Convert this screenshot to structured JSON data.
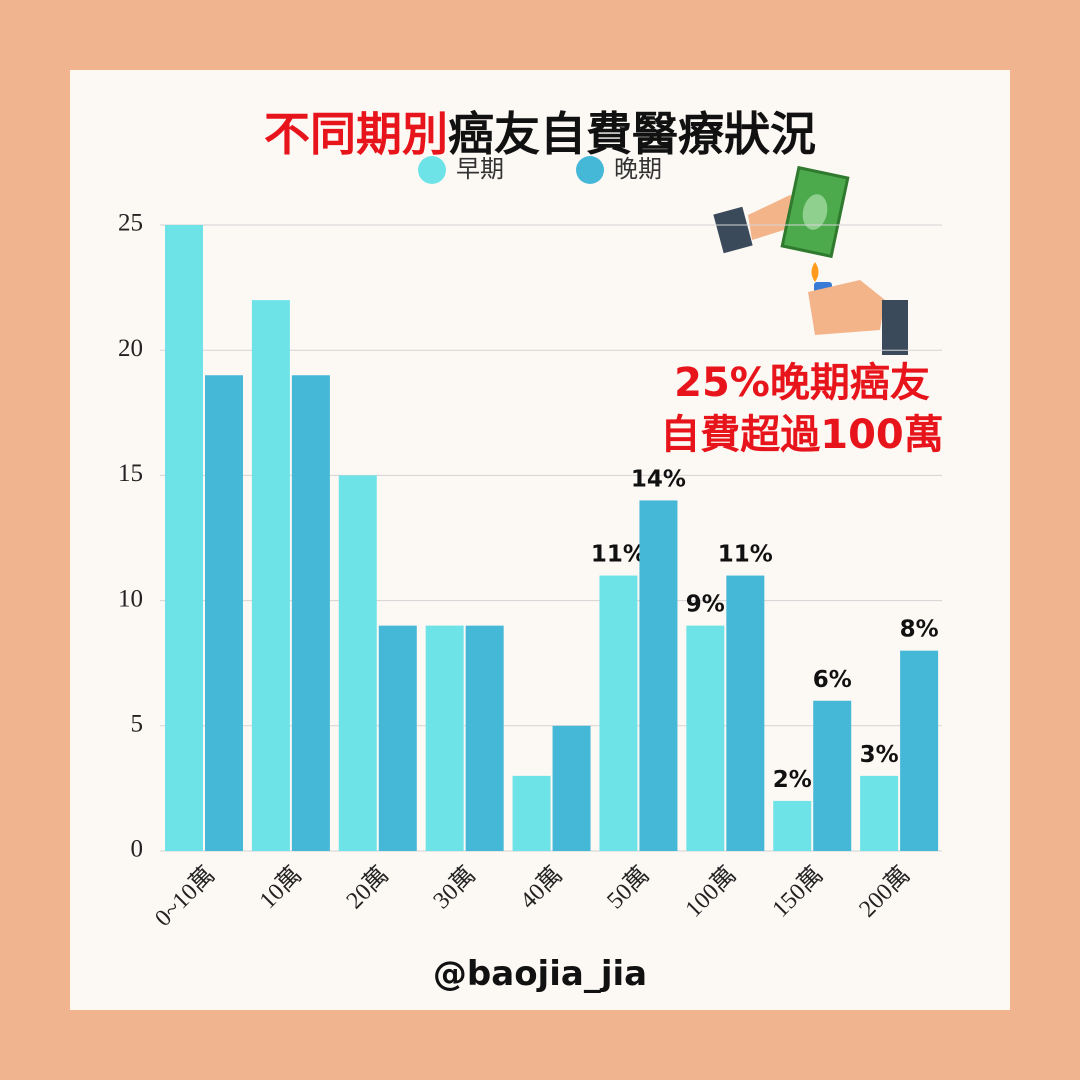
{
  "chart_data": {
    "type": "bar",
    "title": {
      "highlight": "不同期別",
      "rest": "癌友自費醫療狀況"
    },
    "categories": [
      "0~10萬",
      "10萬",
      "20萬",
      "30萬",
      "40萬",
      "50萬",
      "100萬",
      "150萬",
      "200萬"
    ],
    "series": [
      {
        "name": "早期",
        "color": "#6de3e8",
        "values": [
          25,
          22,
          15,
          9,
          3,
          11,
          9,
          2,
          3
        ],
        "value_labels": [
          null,
          null,
          null,
          null,
          null,
          "11%",
          "9%",
          "2%",
          "3%"
        ]
      },
      {
        "name": "晚期",
        "color": "#45b8d8",
        "values": [
          19,
          19,
          9,
          9,
          5,
          14,
          11,
          6,
          8
        ],
        "value_labels": [
          null,
          null,
          null,
          null,
          null,
          "14%",
          "11%",
          "6%",
          "8%"
        ]
      }
    ],
    "ylim": [
      0,
      25
    ],
    "yticks": [
      0,
      5,
      10,
      15,
      20,
      25
    ],
    "grid": true,
    "annotation": [
      "25%晚期癌友",
      "自費超過100萬"
    ],
    "footer": "@baojia_jia"
  }
}
